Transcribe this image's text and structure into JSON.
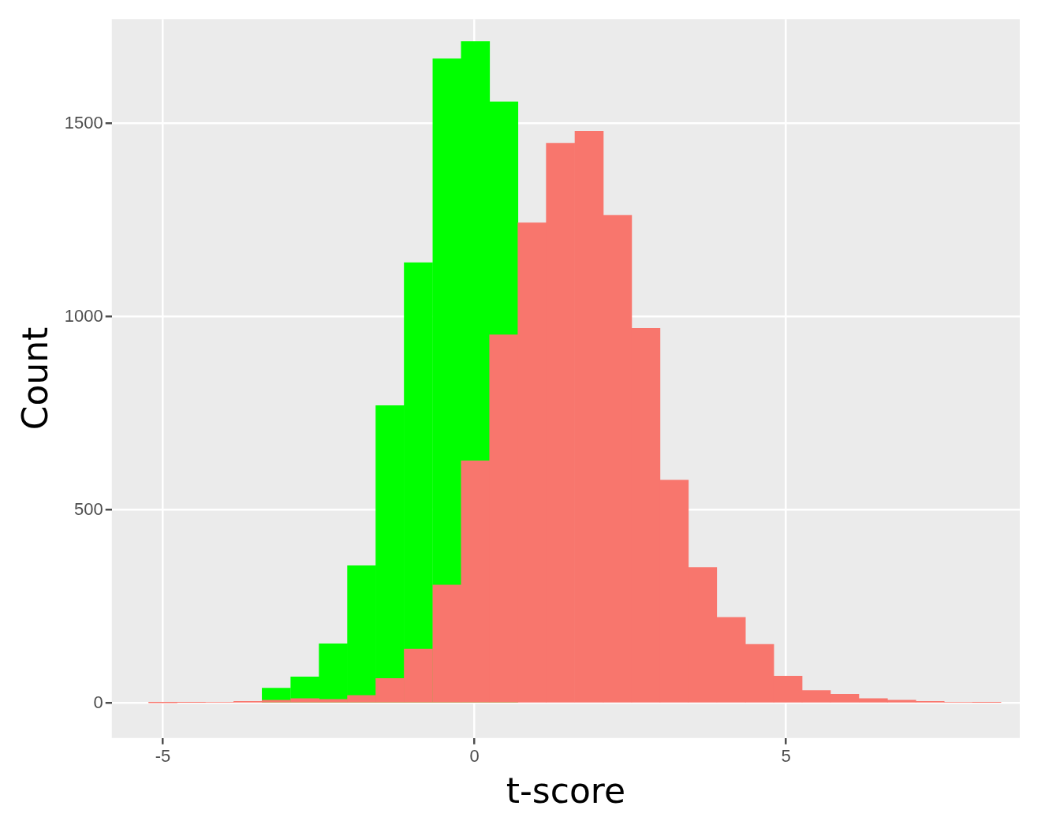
{
  "chart_data": {
    "type": "histogram",
    "xlabel": "t-score",
    "ylabel": "Count",
    "bins": [
      -5.23,
      -4.77,
      -4.32,
      -3.86,
      -3.41,
      -2.95,
      -2.49,
      -2.04,
      -1.58,
      -1.13,
      -0.67,
      -0.21,
      0.24,
      0.7,
      1.15,
      1.61,
      2.07,
      2.52,
      2.98,
      3.43,
      3.89,
      4.35,
      4.8,
      5.26,
      5.71,
      6.17,
      6.63,
      7.08,
      7.54,
      7.99,
      8.45
    ],
    "series": [
      {
        "color": "#00ff00",
        "values": [
          null,
          null,
          null,
          null,
          39,
          68,
          154,
          356,
          770,
          1140,
          1667,
          1712,
          1556,
          null,
          null,
          null,
          null,
          null,
          null,
          null,
          null,
          null,
          null,
          null,
          null,
          null,
          null,
          null,
          null,
          null
        ]
      },
      {
        "color": "#f8766d",
        "values": [
          1,
          2,
          3,
          5,
          8,
          12,
          10,
          20,
          64,
          140,
          306,
          627,
          953,
          1243,
          1449,
          1480,
          1262,
          970,
          577,
          351,
          222,
          152,
          70,
          33,
          23,
          12,
          8,
          5,
          3,
          2
        ]
      }
    ],
    "xlim": [
      -5.82,
      8.75
    ],
    "ylim": [
      -90,
      1770
    ],
    "xticks": [
      -5,
      0,
      5
    ],
    "yticks": [
      0,
      500,
      1000,
      1500
    ],
    "grid": true,
    "legend": false
  }
}
